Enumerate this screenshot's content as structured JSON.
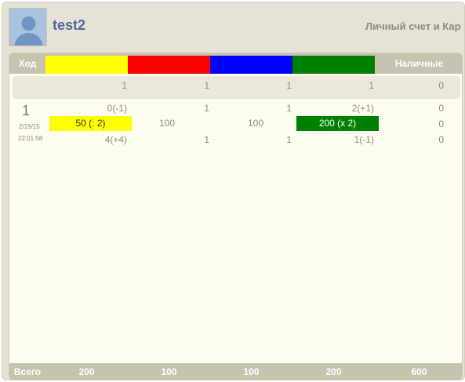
{
  "user": {
    "name": "test2",
    "header_link": "Личный счет и Кар"
  },
  "colors": {
    "yellow": "#ffff00",
    "red": "#ff0000",
    "blue": "#0000ff",
    "green": "#008000"
  },
  "table": {
    "turn_label": "Ход",
    "cash_label": "Наличные",
    "summary": [
      "1",
      "1",
      "1",
      "1",
      "0"
    ],
    "turn": {
      "number": "1",
      "date": "2/19/15",
      "time": "22:01:58",
      "row1": [
        "0(-1)",
        "1",
        "1",
        "2(+1)",
        "0"
      ],
      "row2": [
        "50 (: 2)",
        "100",
        "100",
        "200 (x 2)",
        "0"
      ],
      "row3": [
        "4(+4)",
        "1",
        "1",
        "1(-1)",
        "0"
      ]
    },
    "total_label": "Всего",
    "totals": [
      "200",
      "100",
      "100",
      "200",
      "600"
    ]
  }
}
